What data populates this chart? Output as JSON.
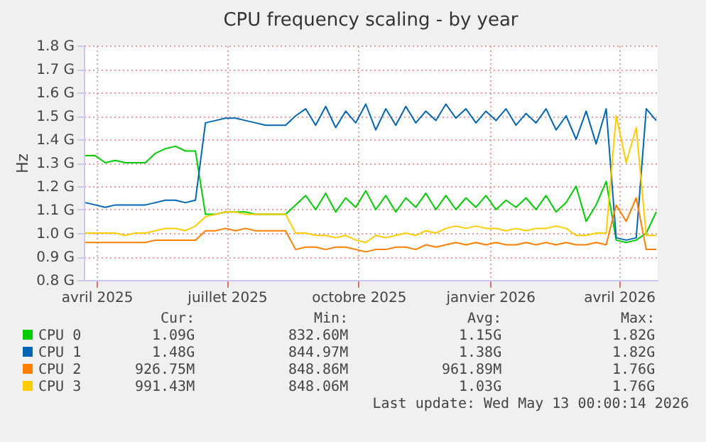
{
  "chart_data": {
    "type": "line",
    "title": "CPU frequency scaling - by year",
    "ylabel": "Hz",
    "x": [
      "2025-03-24",
      "2025-03-31",
      "2025-04-07",
      "2025-04-14",
      "2025-04-21",
      "2025-04-28",
      "2025-05-05",
      "2025-05-12",
      "2025-05-19",
      "2025-05-26",
      "2025-06-02",
      "2025-06-09",
      "2025-06-16",
      "2025-06-23",
      "2025-06-30",
      "2025-07-07",
      "2025-07-14",
      "2025-07-21",
      "2025-07-28",
      "2025-08-04",
      "2025-08-11",
      "2025-08-18",
      "2025-08-25",
      "2025-09-01",
      "2025-09-08",
      "2025-09-15",
      "2025-09-22",
      "2025-09-29",
      "2025-10-06",
      "2025-10-13",
      "2025-10-20",
      "2025-10-27",
      "2025-11-03",
      "2025-11-10",
      "2025-11-17",
      "2025-11-24",
      "2025-12-01",
      "2025-12-08",
      "2025-12-15",
      "2025-12-22",
      "2025-12-29",
      "2026-01-05",
      "2026-01-12",
      "2026-01-19",
      "2026-01-26",
      "2026-02-02",
      "2026-02-09",
      "2026-02-16",
      "2026-02-23",
      "2026-03-02",
      "2026-03-09",
      "2026-03-16",
      "2026-03-23",
      "2026-03-30",
      "2026-04-06",
      "2026-04-13",
      "2026-04-20",
      "2026-04-27"
    ],
    "series": [
      {
        "name": "CPU 0",
        "color": "#00cc00",
        "values": [
          1.33,
          1.33,
          1.3,
          1.31,
          1.3,
          1.3,
          1.3,
          1.34,
          1.36,
          1.37,
          1.35,
          1.35,
          1.08,
          1.08,
          1.09,
          1.09,
          1.09,
          1.08,
          1.08,
          1.08,
          1.08,
          1.12,
          1.16,
          1.1,
          1.17,
          1.09,
          1.15,
          1.11,
          1.18,
          1.1,
          1.16,
          1.09,
          1.15,
          1.11,
          1.17,
          1.1,
          1.16,
          1.1,
          1.15,
          1.11,
          1.16,
          1.1,
          1.14,
          1.11,
          1.15,
          1.1,
          1.16,
          1.09,
          1.13,
          1.2,
          1.05,
          1.12,
          1.22,
          0.97,
          0.96,
          0.97,
          1.0,
          1.09
        ]
      },
      {
        "name": "CPU 1",
        "color": "#0066b3",
        "values": [
          1.13,
          1.12,
          1.11,
          1.12,
          1.12,
          1.12,
          1.12,
          1.13,
          1.14,
          1.14,
          1.13,
          1.14,
          1.47,
          1.48,
          1.49,
          1.49,
          1.48,
          1.47,
          1.46,
          1.46,
          1.46,
          1.5,
          1.53,
          1.46,
          1.54,
          1.45,
          1.52,
          1.47,
          1.55,
          1.44,
          1.53,
          1.46,
          1.54,
          1.47,
          1.52,
          1.48,
          1.55,
          1.49,
          1.53,
          1.47,
          1.52,
          1.48,
          1.53,
          1.46,
          1.51,
          1.47,
          1.53,
          1.44,
          1.5,
          1.4,
          1.52,
          1.38,
          1.53,
          0.98,
          0.97,
          0.98,
          1.53,
          1.48
        ]
      },
      {
        "name": "CPU 2",
        "color": "#ff8000",
        "values": [
          0.96,
          0.96,
          0.96,
          0.96,
          0.96,
          0.96,
          0.96,
          0.97,
          0.97,
          0.97,
          0.97,
          0.97,
          1.01,
          1.01,
          1.02,
          1.01,
          1.02,
          1.01,
          1.01,
          1.01,
          1.01,
          0.93,
          0.94,
          0.94,
          0.93,
          0.94,
          0.94,
          0.93,
          0.92,
          0.93,
          0.93,
          0.94,
          0.94,
          0.93,
          0.95,
          0.94,
          0.95,
          0.96,
          0.95,
          0.96,
          0.95,
          0.96,
          0.95,
          0.95,
          0.96,
          0.95,
          0.96,
          0.95,
          0.96,
          0.95,
          0.95,
          0.96,
          0.95,
          1.12,
          1.05,
          1.15,
          0.93,
          0.93
        ]
      },
      {
        "name": "CPU 3",
        "color": "#ffcc00",
        "values": [
          1.0,
          1.0,
          1.0,
          1.0,
          0.99,
          1.0,
          1.0,
          1.01,
          1.02,
          1.02,
          1.01,
          1.03,
          1.07,
          1.08,
          1.09,
          1.09,
          1.08,
          1.08,
          1.08,
          1.08,
          1.08,
          1.0,
          1.0,
          0.99,
          0.99,
          0.98,
          0.99,
          0.97,
          0.96,
          0.99,
          0.98,
          0.99,
          1.0,
          0.99,
          1.01,
          1.0,
          1.02,
          1.03,
          1.02,
          1.03,
          1.02,
          1.02,
          1.01,
          1.02,
          1.01,
          1.02,
          1.02,
          1.03,
          1.02,
          0.99,
          0.99,
          1.0,
          1.0,
          1.5,
          1.3,
          1.45,
          0.99,
          0.99
        ]
      }
    ],
    "xlim": [
      "2025-03-23",
      "2026-04-28"
    ],
    "xticks": [
      {
        "value": "2025-04-01",
        "label": "avril 2025"
      },
      {
        "value": "2025-07-01",
        "label": "juillet 2025"
      },
      {
        "value": "2025-10-01",
        "label": "octobre 2025"
      },
      {
        "value": "2026-01-01",
        "label": "janvier 2026"
      },
      {
        "value": "2026-04-01",
        "label": "avril 2026"
      }
    ],
    "ylim": [
      0.8,
      1.8
    ],
    "yticks": [
      {
        "value": 0.8,
        "label": "0.8 G"
      },
      {
        "value": 0.9,
        "label": "0.9 G"
      },
      {
        "value": 1.0,
        "label": "1.0 G"
      },
      {
        "value": 1.1,
        "label": "1.1 G"
      },
      {
        "value": 1.2,
        "label": "1.2 G"
      },
      {
        "value": 1.3,
        "label": "1.3 G"
      },
      {
        "value": 1.4,
        "label": "1.4 G"
      },
      {
        "value": 1.5,
        "label": "1.5 G"
      },
      {
        "value": 1.6,
        "label": "1.6 G"
      },
      {
        "value": 1.7,
        "label": "1.7 G"
      },
      {
        "value": 1.8,
        "label": "1.8 G"
      }
    ],
    "grid": true,
    "legend": "bottom",
    "annotations": [
      "Cur:",
      "Min:",
      "Avg:",
      "Max:",
      "1.09G",
      "832.60M",
      "1.15G",
      "1.82G",
      "1.48G",
      "844.97M",
      "1.38G",
      "1.82G",
      "926.75M",
      "848.86M",
      "961.89M",
      "1.76G",
      "991.43M",
      "848.06M",
      "1.03G",
      "1.76G",
      "Last update: Wed May 13 00:00:14 2026"
    ]
  }
}
